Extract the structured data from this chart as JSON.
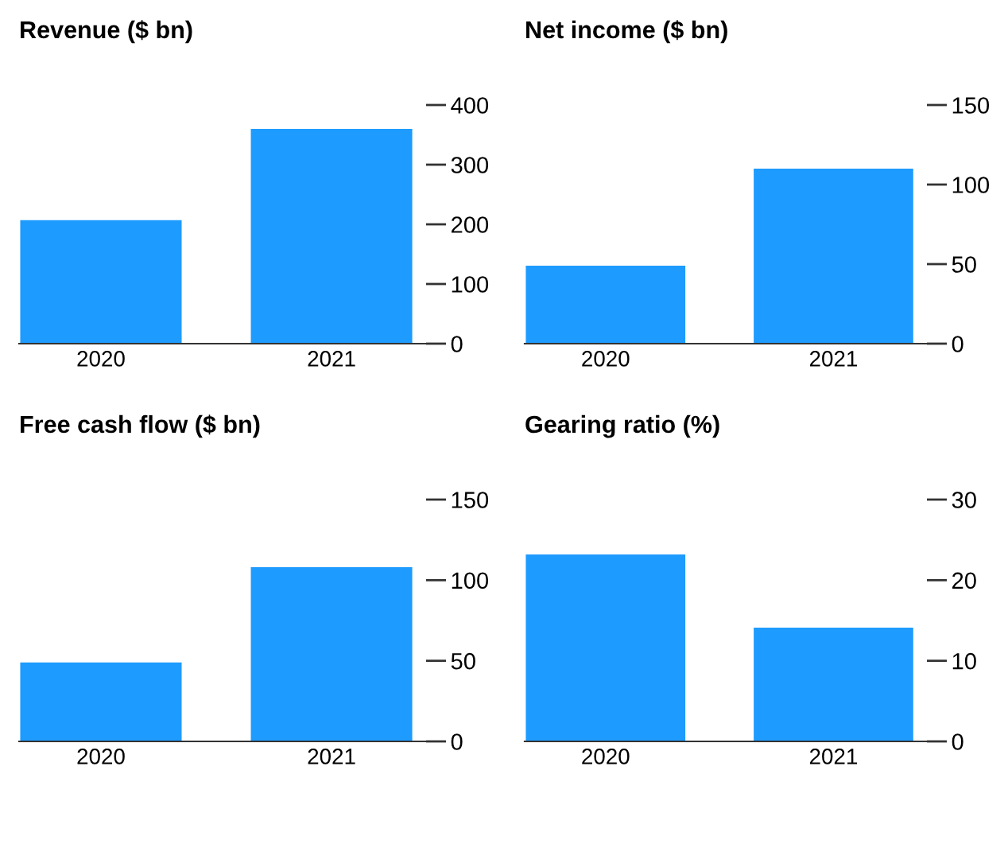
{
  "chart_data": [
    {
      "type": "bar",
      "title": "Revenue ($ bn)",
      "categories": [
        "2020",
        "2021"
      ],
      "values": [
        207,
        360
      ],
      "color": "#1e9bfe",
      "ylim": [
        0,
        400
      ],
      "yticks": [
        0,
        100,
        200,
        300,
        400
      ]
    },
    {
      "type": "bar",
      "title": "Net income ($ bn)",
      "categories": [
        "2020",
        "2021"
      ],
      "values": [
        49,
        110
      ],
      "color": "#1e9bfe",
      "ylim": [
        0,
        150
      ],
      "yticks": [
        0,
        50,
        100,
        150
      ]
    },
    {
      "type": "bar",
      "title": "Free cash flow ($ bn)",
      "categories": [
        "2020",
        "2021"
      ],
      "values": [
        49,
        108
      ],
      "color": "#1e9bfe",
      "ylim": [
        0,
        150
      ],
      "yticks": [
        0,
        50,
        100,
        150
      ]
    },
    {
      "type": "bar",
      "title": "Gearing ratio (%)",
      "categories": [
        "2020",
        "2021"
      ],
      "values": [
        23.2,
        14.1
      ],
      "color": "#1e9bfe",
      "ylim": [
        0,
        30
      ],
      "yticks": [
        0,
        10,
        20,
        30
      ]
    }
  ]
}
